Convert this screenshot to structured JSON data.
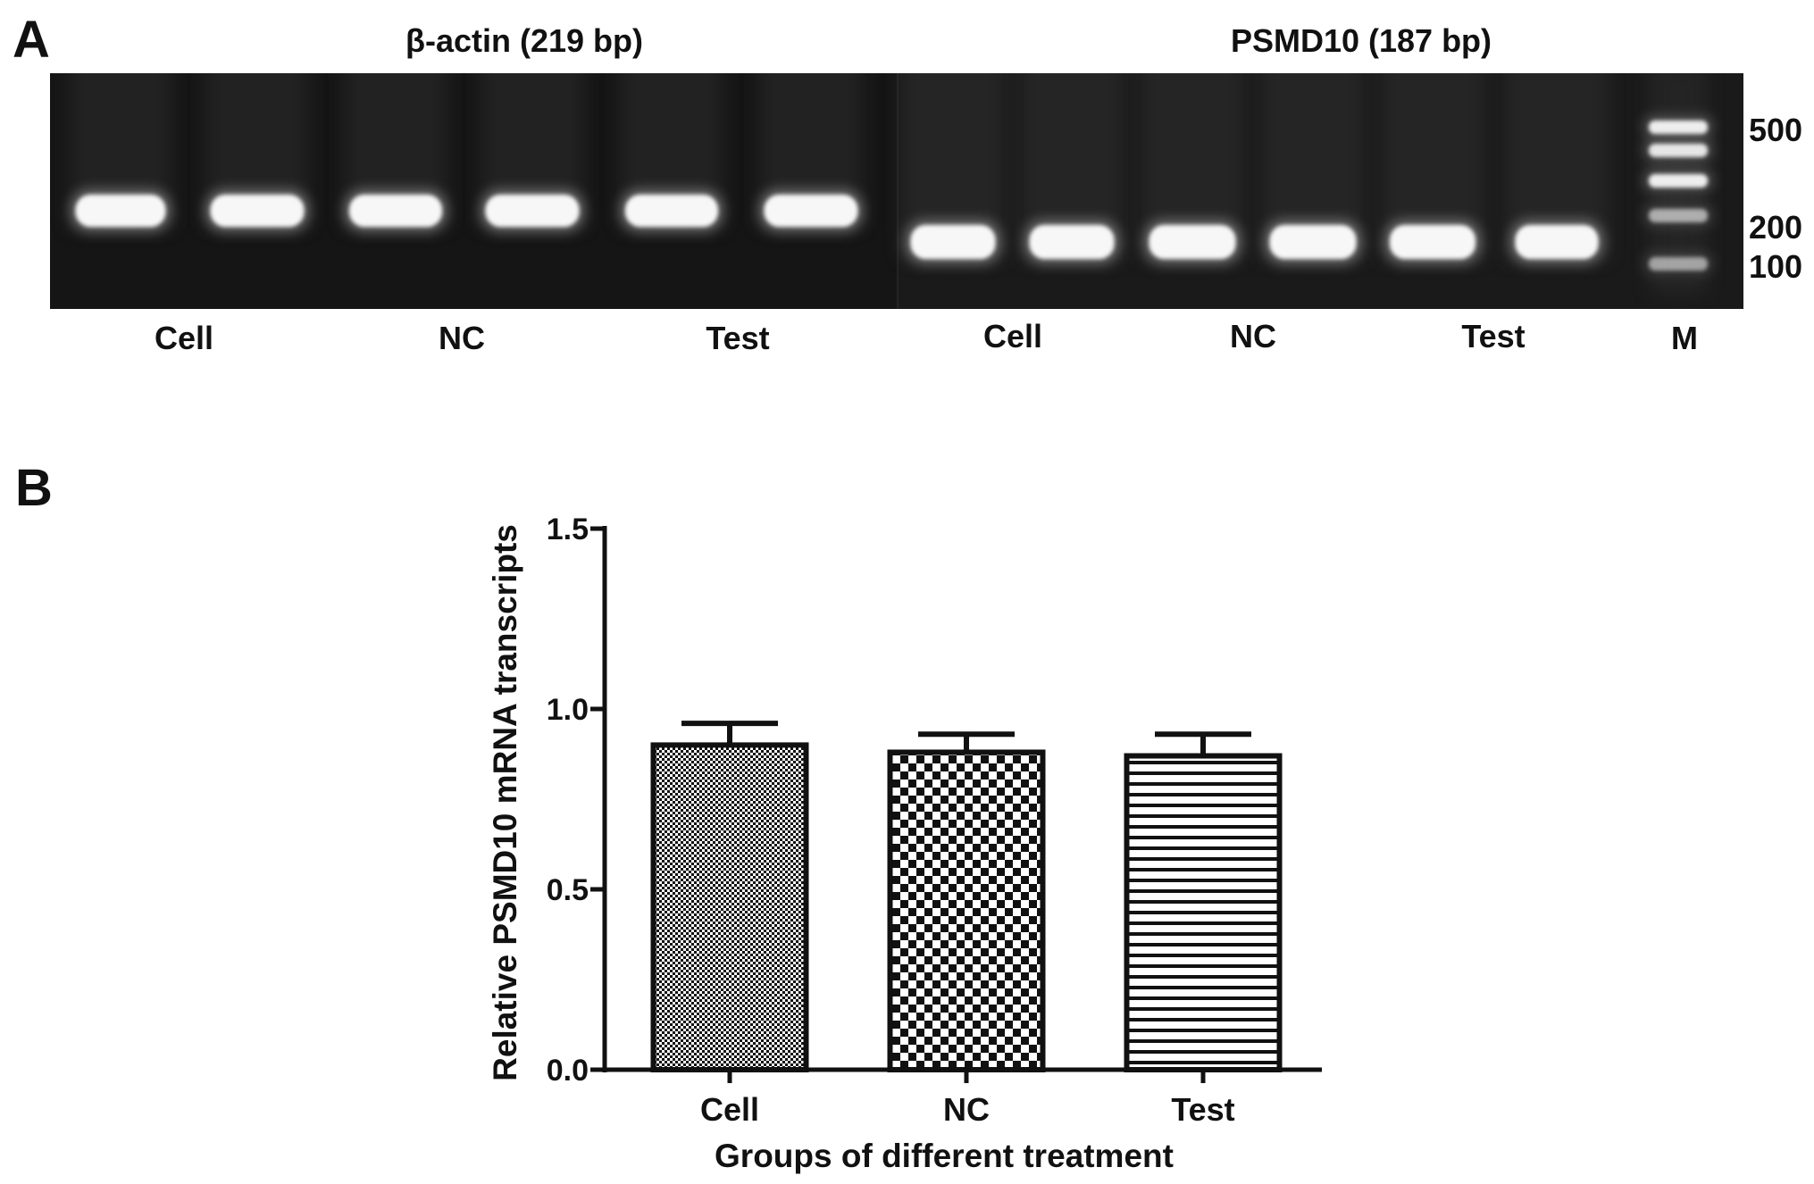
{
  "panel_a": {
    "label": "A",
    "title_left": "β-actin (219 bp)",
    "title_right": "PSMD10 (187 bp)",
    "lane_labels": [
      "Cell",
      "NC",
      "Test",
      "Cell",
      "NC",
      "Test",
      "M"
    ],
    "marker_sizes": [
      "500",
      "200",
      "100"
    ],
    "colors": {
      "gel_left": "#151515",
      "gel_right": "#1a1a1a",
      "band": "#f7f7f7"
    }
  },
  "panel_b": {
    "label": "B"
  },
  "chart_data": {
    "type": "bar",
    "categories": [
      "Cell",
      "NC",
      "Test"
    ],
    "values": [
      0.9,
      0.88,
      0.87
    ],
    "error": [
      0.06,
      0.05,
      0.06
    ],
    "xlabel": "Groups of different treatment",
    "ylabel": "Relative PSMD10 mRNA transcripts",
    "ylim": [
      0,
      1.5
    ],
    "yticks": [
      "0.0",
      "0.5",
      "1.0",
      "1.5"
    ],
    "bar_fills": [
      "fine-checker",
      "checkerboard",
      "horizontal-lines"
    ],
    "bar_outline_color": "#111111",
    "grid": false,
    "legend": "none"
  }
}
